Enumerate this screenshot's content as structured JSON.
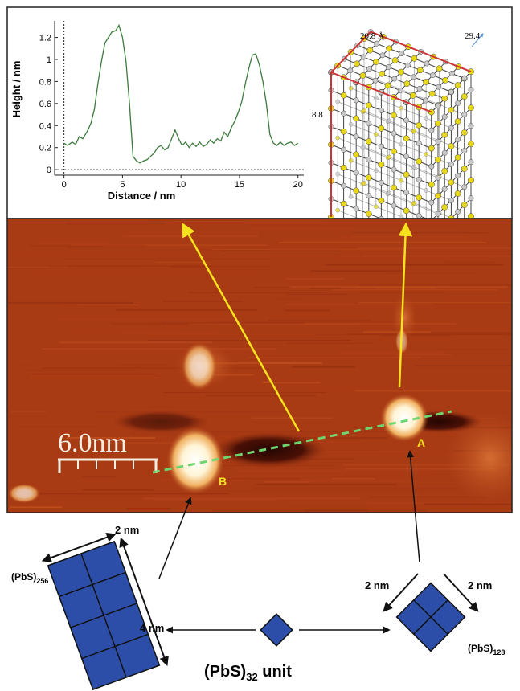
{
  "height_profile": {
    "chart_data": {
      "type": "line",
      "xlabel": "Distance / nm",
      "ylabel": "Height / nm",
      "xlim": [
        -0.8,
        20.5
      ],
      "ylim": [
        -0.05,
        1.35
      ],
      "x_ticks": [
        0,
        5,
        10,
        15,
        20
      ],
      "y_ticks": [
        0,
        0.2,
        0.4,
        0.6,
        0.8,
        1,
        1.2
      ],
      "baseline_y": 0,
      "series": [
        {
          "color": "#3c7a3c",
          "x": [
            0,
            0.3,
            0.7,
            1.0,
            1.3,
            1.6,
            2.0,
            2.3,
            2.6,
            2.9,
            3.2,
            3.5,
            3.8,
            4.1,
            4.4,
            4.7,
            5.0,
            5.3,
            5.6,
            5.9,
            6.2,
            6.5,
            6.8,
            7.1,
            7.4,
            7.7,
            8.0,
            8.3,
            8.6,
            8.9,
            9.2,
            9.5,
            9.8,
            10.1,
            10.4,
            10.7,
            11.0,
            11.3,
            11.6,
            11.9,
            12.2,
            12.5,
            12.8,
            13.1,
            13.4,
            13.7,
            14.0,
            14.3,
            14.6,
            14.9,
            15.2,
            15.5,
            15.8,
            16.1,
            16.4,
            16.7,
            17.0,
            17.3,
            17.6,
            17.9,
            18.2,
            18.5,
            18.8,
            19.1,
            19.4,
            19.7,
            20.0
          ],
          "y": [
            0.24,
            0.22,
            0.25,
            0.23,
            0.3,
            0.28,
            0.35,
            0.42,
            0.55,
            0.78,
            0.98,
            1.15,
            1.2,
            1.25,
            1.26,
            1.31,
            1.2,
            0.98,
            0.6,
            0.12,
            0.08,
            0.06,
            0.08,
            0.09,
            0.12,
            0.15,
            0.2,
            0.22,
            0.18,
            0.2,
            0.28,
            0.36,
            0.28,
            0.22,
            0.25,
            0.2,
            0.24,
            0.21,
            0.25,
            0.21,
            0.23,
            0.27,
            0.24,
            0.28,
            0.26,
            0.34,
            0.3,
            0.38,
            0.44,
            0.52,
            0.62,
            0.78,
            0.92,
            1.04,
            1.05,
            0.95,
            0.8,
            0.6,
            0.32,
            0.24,
            0.22,
            0.25,
            0.22,
            0.24,
            0.25,
            0.22,
            0.24
          ]
        }
      ]
    }
  },
  "crystal_model": {
    "labels": {
      "top": "20.8 Å",
      "side": "8.8",
      "right": "29.4"
    },
    "atom_colors": {
      "lead": "#c8c8c8",
      "sulfur": "#e8d81a",
      "bond": "#444444",
      "edge": "#cc3333"
    }
  },
  "stm_image": {
    "scale_label": "6.0nm",
    "marker_a": "A",
    "marker_b": "B",
    "colors": {
      "background": "#a83a14",
      "bright": "#fff6dc",
      "dark": "#3a0c04",
      "profile_line": "#6fd66f",
      "arrow": "#f5e31e"
    }
  },
  "schematic": {
    "large_cluster": {
      "formula": "(PbS)",
      "subscript": "256",
      "dim_top": "2 nm",
      "dim_side": "4 nm"
    },
    "medium_cluster": {
      "formula": "(PbS)",
      "subscript": "128",
      "dim_left": "2 nm",
      "dim_right": "2 nm"
    },
    "unit": {
      "formula": "(PbS)",
      "subscript": "32",
      "suffix": " unit"
    },
    "tile_color": "#2c4ea8"
  }
}
